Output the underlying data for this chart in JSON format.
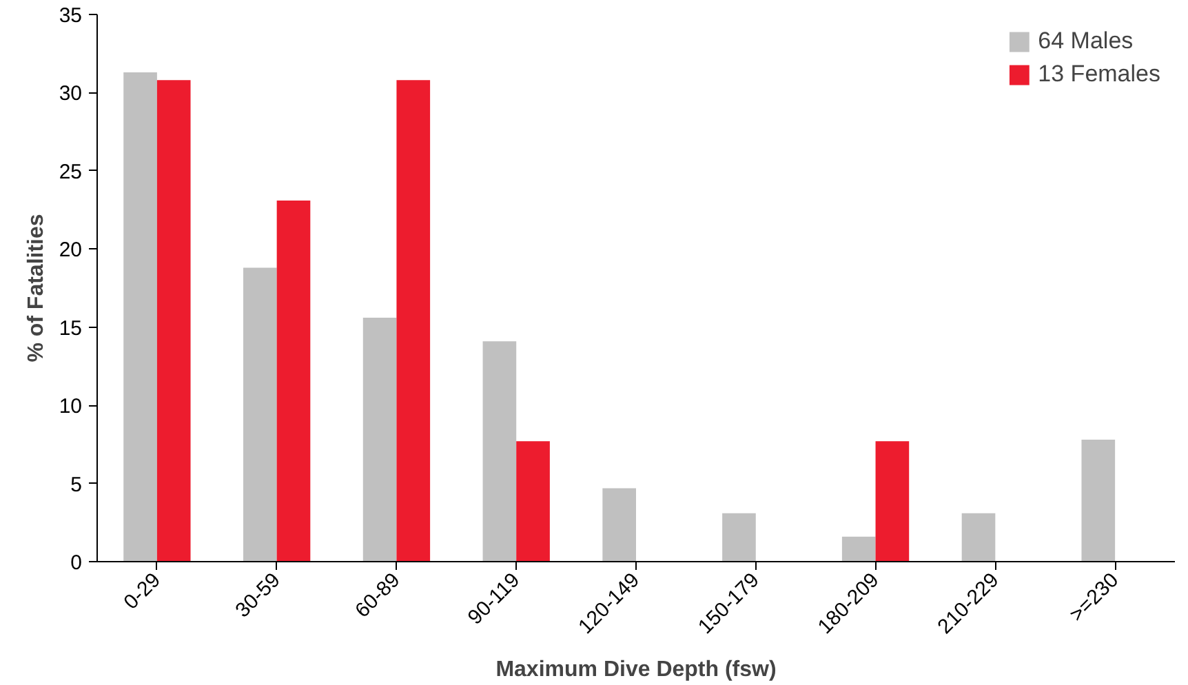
{
  "chart_data": {
    "type": "bar",
    "xlabel": "Maximum Dive Depth (fsw)",
    "ylabel": "% of Fatalities",
    "categories": [
      "0-29",
      "30-59",
      "60-89",
      "90-119",
      "120-149",
      "150-179",
      "180-209",
      "210-229",
      ">=230"
    ],
    "series": [
      {
        "name": "64 Males",
        "color": "#c0c0c0",
        "values": [
          31.3,
          18.8,
          15.6,
          14.1,
          4.7,
          3.1,
          1.6,
          3.1,
          7.8
        ]
      },
      {
        "name": "13 Females",
        "color": "#ed1c2e",
        "values": [
          30.8,
          23.1,
          30.8,
          7.7,
          0,
          0,
          7.7,
          0,
          0
        ]
      }
    ],
    "ylim": [
      0,
      35
    ],
    "yticks": [
      0,
      5,
      10,
      15,
      20,
      25,
      30,
      35
    ],
    "grid": false,
    "legend": "top right"
  }
}
